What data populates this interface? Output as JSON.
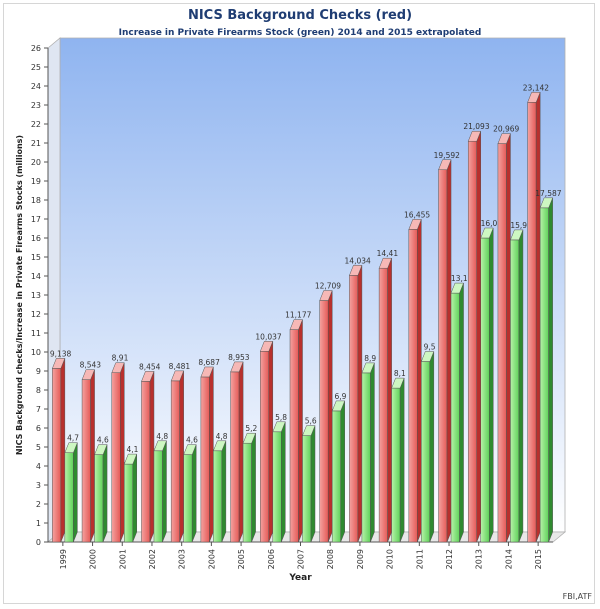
{
  "chart_data": {
    "type": "bar",
    "title": "NICS Background Checks (red)",
    "subtitle": "Increase in Private Firearms Stock (green)  2014 and 2015 extrapolated",
    "xlabel": "Year",
    "ylabel": "NICS Background checks/Increase in Private Firearms Stocks (millions)",
    "ylim": [
      0,
      26
    ],
    "yticks": [
      0,
      1,
      2,
      3,
      4,
      5,
      6,
      7,
      8,
      9,
      10,
      11,
      12,
      13,
      14,
      15,
      16,
      17,
      18,
      19,
      20,
      21,
      22,
      23,
      24,
      25,
      26
    ],
    "categories": [
      "1999",
      "2000",
      "2001",
      "2002",
      "2003",
      "2004",
      "2005",
      "2006",
      "2007",
      "2008",
      "2009",
      "2010",
      "2011",
      "2012",
      "2013",
      "2014",
      "2015"
    ],
    "series": [
      {
        "color": "#e0413e",
        "values": [
          9.138,
          8.543,
          8.91,
          8.454,
          8.481,
          8.687,
          8.953,
          10.037,
          11.177,
          12.709,
          14.034,
          14.41,
          16.455,
          19.592,
          21.093,
          20.969,
          23.142
        ],
        "labels": [
          "9,138",
          "8,543",
          "8,91",
          "8,454",
          "8,481",
          "8,687",
          "8,953",
          "10,037",
          "11,177",
          "12,709",
          "14,034",
          "14,41",
          "16,455",
          "19,592",
          "21,093",
          "20,969",
          "23,142"
        ]
      },
      {
        "color": "#4cc24a",
        "values": [
          4.7,
          4.6,
          4.1,
          4.8,
          4.6,
          4.8,
          5.2,
          5.8,
          5.6,
          6.9,
          8.9,
          8.1,
          9.5,
          13.1,
          16.0,
          15.9,
          17.587
        ],
        "labels": [
          "4,7",
          "4,6",
          "4,1",
          "4,8",
          "4,6",
          "4,8",
          "5,2",
          "5,8",
          "5,6",
          "6,9",
          "8,9",
          "8,1",
          "9,5",
          "13,1",
          "16,0",
          "15,9",
          "17,587"
        ]
      }
    ],
    "grid": false,
    "legend": "none"
  },
  "credit": "FBI,ATF"
}
